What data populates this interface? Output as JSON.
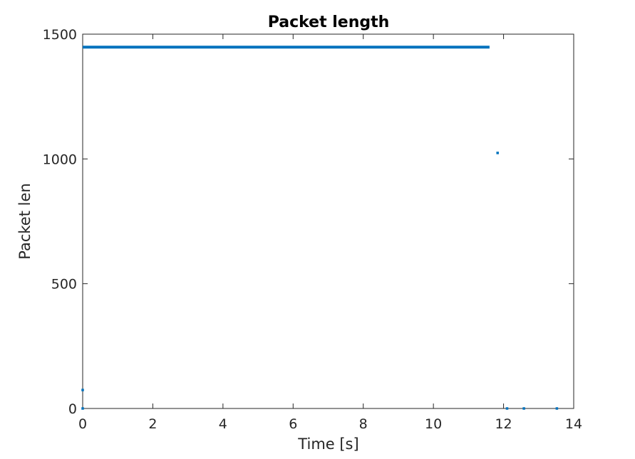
{
  "chart_data": {
    "type": "scatter",
    "title": "Packet length",
    "xlabel": "Time [s]",
    "ylabel": "Packet len",
    "xlim": [
      0,
      14
    ],
    "ylim": [
      0,
      1500
    ],
    "x_ticks": [
      0,
      2,
      4,
      6,
      8,
      10,
      12,
      14
    ],
    "y_ticks": [
      0,
      500,
      1000,
      1500
    ],
    "grid": false,
    "legend": "none",
    "series": [
      {
        "color": "#0072BD",
        "segments": [
          {
            "x": [
              0,
              11.6
            ],
            "y": [
              1448,
              1448
            ]
          }
        ],
        "points": [
          {
            "x": 0,
            "y": 74
          },
          {
            "x": 0,
            "y": 0
          },
          {
            "x": 11.83,
            "y": 1024
          },
          {
            "x": 12.1,
            "y": 0
          },
          {
            "x": 12.58,
            "y": 0
          },
          {
            "x": 13.52,
            "y": 0
          }
        ]
      }
    ]
  }
}
